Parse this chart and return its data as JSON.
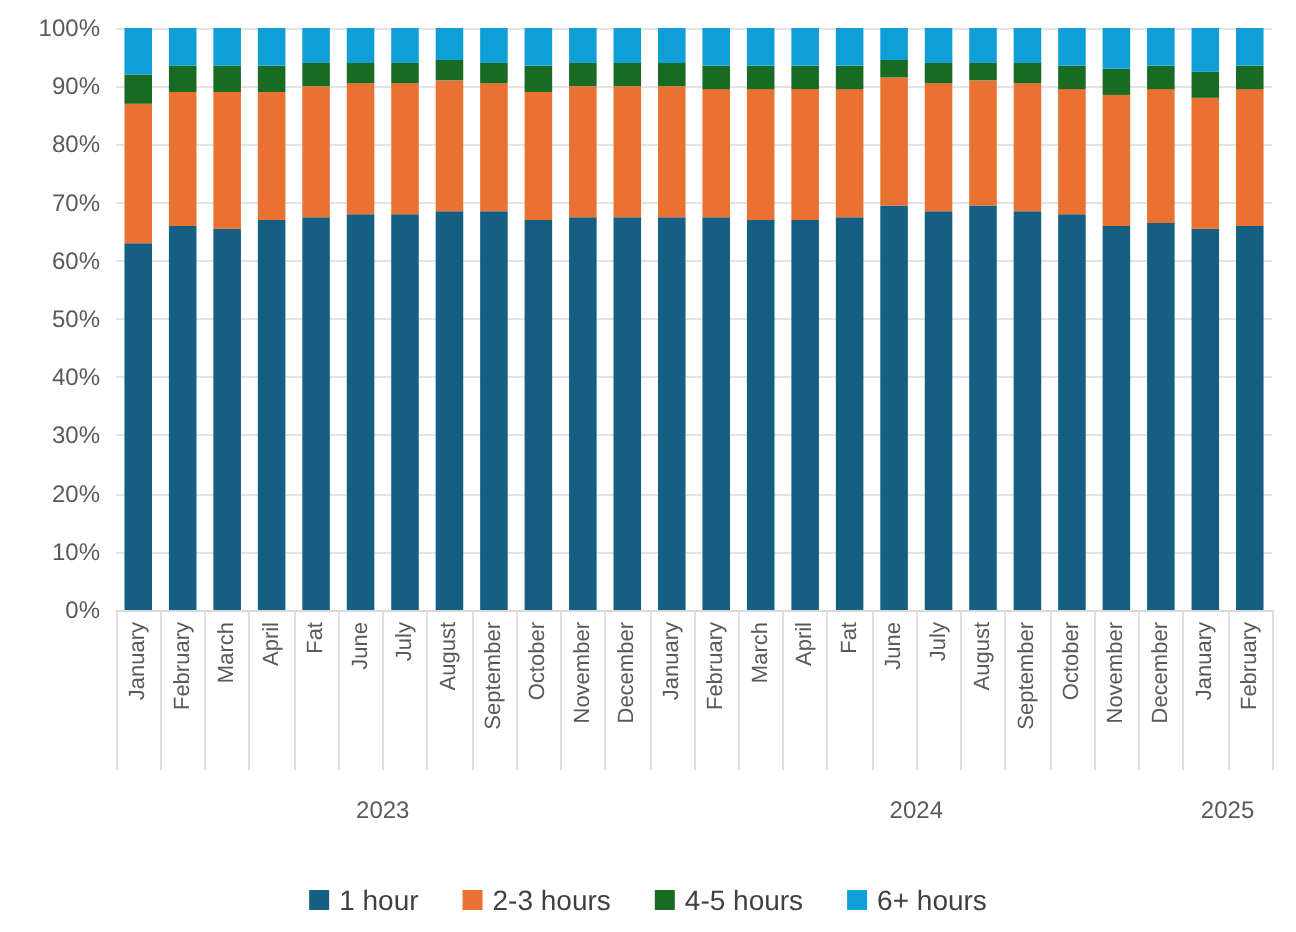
{
  "chart_data": {
    "type": "bar",
    "stacked": true,
    "categories": [
      "January",
      "February",
      "March",
      "April",
      "Fat",
      "June",
      "July",
      "August",
      "September",
      "October",
      "November",
      "December",
      "January",
      "February",
      "March",
      "April",
      "Fat",
      "June",
      "July",
      "August",
      "September",
      "October",
      "November",
      "December",
      "January",
      "February"
    ],
    "series": [
      {
        "name": "1 hour",
        "color": "#156082",
        "values": [
          63,
          66,
          65.5,
          67,
          67.5,
          68,
          68,
          68.5,
          68.5,
          67,
          67.5,
          67.5,
          67.5,
          67.5,
          67,
          67,
          67.5,
          69.5,
          68.5,
          69.5,
          68.5,
          68,
          66,
          66.5,
          65.5,
          66
        ]
      },
      {
        "name": "2-3 hours",
        "color": "#e97132",
        "values": [
          24,
          23,
          23.5,
          22,
          22.5,
          22.5,
          22.5,
          22.5,
          22,
          22,
          22.5,
          22.5,
          22.5,
          22,
          22.5,
          22.5,
          22,
          22,
          22,
          21.5,
          22,
          21.5,
          22.5,
          23,
          22.5,
          23.5
        ]
      },
      {
        "name": "4-5 hours",
        "color": "#196b24",
        "values": [
          5,
          4.5,
          4.5,
          4.5,
          4,
          3.5,
          3.5,
          3.5,
          3.5,
          4.5,
          4,
          4,
          4,
          4,
          4,
          4,
          4,
          3,
          3.5,
          3,
          3.5,
          4,
          4.5,
          4,
          4.5,
          4
        ]
      },
      {
        "name": "6+ hours",
        "color": "#0f9ed5",
        "values": [
          8,
          6.5,
          6.5,
          6.5,
          6,
          6,
          6,
          5.5,
          6,
          6.5,
          6,
          6,
          6,
          6.5,
          6.5,
          6.5,
          6.5,
          5.5,
          6,
          6,
          6,
          6.5,
          7,
          6.5,
          7.5,
          6.5
        ]
      }
    ],
    "ylim": [
      0,
      100
    ],
    "yticks": [
      {
        "value": 0,
        "label": "0%"
      },
      {
        "value": 10,
        "label": "10%"
      },
      {
        "value": 20,
        "label": "20%"
      },
      {
        "value": 30,
        "label": "30%"
      },
      {
        "value": 40,
        "label": "40%"
      },
      {
        "value": 50,
        "label": "50%"
      },
      {
        "value": 60,
        "label": "60%"
      },
      {
        "value": 70,
        "label": "70%"
      },
      {
        "value": 80,
        "label": "80%"
      },
      {
        "value": 90,
        "label": "90%"
      },
      {
        "value": 100,
        "label": "100%"
      }
    ],
    "grid": "y",
    "legend": "bottom",
    "annotations": [
      "2023",
      "2024",
      "2025"
    ]
  }
}
